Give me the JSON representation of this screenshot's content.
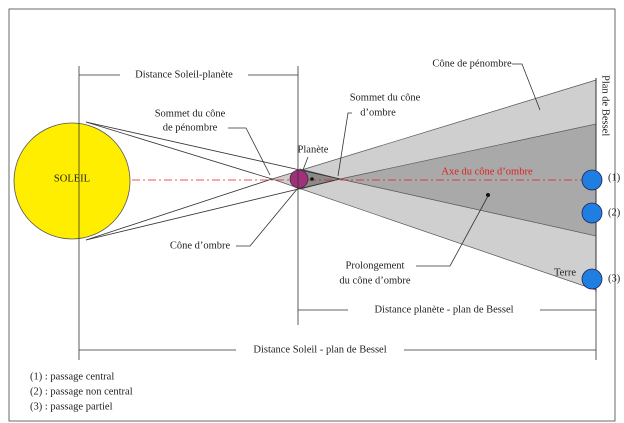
{
  "labels": {
    "sun": "SOLEIL",
    "planet": "Planète",
    "distance_sun_planet": "Distance Soleil-planète",
    "distance_planet_bessel": "Distance planète - plan de Bessel",
    "distance_sun_bessel": "Distance Soleil - plan de Bessel",
    "penumbra_apex": [
      "Sommet du cône",
      "de pénombre"
    ],
    "umbra_apex": [
      "Sommet du cône",
      "d’ombre"
    ],
    "penumbra_cone": "Cône de pénombre",
    "bessel_plane": "Plan de Bessel",
    "umbra_axis": "Axe du cône d’ombre",
    "umbra_cone": "Cône d’ombre",
    "umbra_extension": [
      "Prolongement",
      "du cône d’ombre"
    ],
    "earth": "Terre",
    "positions": [
      "(1)",
      "(2)",
      "(3)"
    ]
  },
  "legend": [
    "(1) : passage central",
    "(2) : passage non central",
    "(3) : passage partiel"
  ]
}
